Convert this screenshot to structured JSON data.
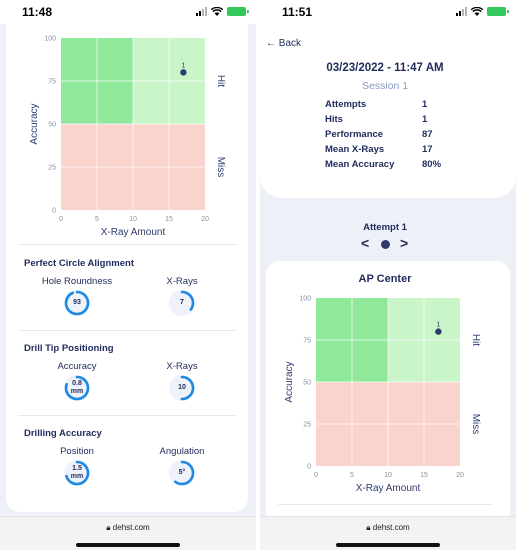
{
  "left_screen": {
    "status_time": "11:48",
    "url": "dehst.com",
    "chart": {
      "x_label": "X-Ray Amount",
      "y_label": "Accuracy",
      "hit_label": "Hit",
      "miss_label": "Miss"
    },
    "sections": [
      {
        "title": "Perfect Circle Alignment",
        "metrics": [
          {
            "label": "Hole Roundness",
            "value": "93",
            "unit": "",
            "fraction": 0.93
          },
          {
            "label": "X-Rays",
            "value": "7",
            "unit": "",
            "fraction": 0.35
          }
        ]
      },
      {
        "title": "Drill Tip Positioning",
        "metrics": [
          {
            "label": "Accuracy",
            "value": "0.8",
            "unit": "mm",
            "fraction": 0.8
          },
          {
            "label": "X-Rays",
            "value": "10",
            "unit": "",
            "fraction": 0.5
          }
        ]
      },
      {
        "title": "Drilling Accuracy",
        "metrics": [
          {
            "label": "Position",
            "value": "1.5",
            "unit": "mm",
            "fraction": 0.7
          },
          {
            "label": "Angulation",
            "value": "5°",
            "unit": "",
            "fraction": 0.6
          }
        ]
      }
    ]
  },
  "right_screen": {
    "status_time": "11:51",
    "back_label": "← Back",
    "session_date": "03/23/2022 - 11:47 AM",
    "session_name": "Session 1",
    "stats": [
      {
        "label": "Attempts",
        "value": "1"
      },
      {
        "label": "Hits",
        "value": "1"
      },
      {
        "label": "Performance",
        "value": "87"
      },
      {
        "label": "Mean X-Rays",
        "value": "17"
      },
      {
        "label": "Mean Accuracy",
        "value": "80%"
      }
    ],
    "attempt_label": "Attempt 1",
    "prev_label": "<",
    "next_label": ">",
    "chart_title": "AP Center",
    "url": "dehst.com",
    "chart": {
      "x_label": "X-Ray Amount",
      "y_label": "Accuracy",
      "hit_label": "Hit",
      "miss_label": "Miss"
    }
  },
  "chart_data": [
    {
      "type": "scatter",
      "xlabel": "X-Ray Amount",
      "ylabel": "Accuracy",
      "xlim": [
        0,
        20
      ],
      "ylim": [
        0,
        100
      ],
      "x_ticks": [
        0,
        5,
        10,
        15,
        20
      ],
      "y_ticks": [
        0,
        25,
        50,
        75,
        100
      ],
      "regions": [
        {
          "name": "Hit",
          "x": [
            0,
            10
          ],
          "y": [
            50,
            100
          ],
          "color": "#90e89a"
        },
        {
          "name": "Hit",
          "x": [
            10,
            20
          ],
          "y": [
            50,
            100
          ],
          "color": "#c9f5c9"
        },
        {
          "name": "Miss",
          "x": [
            0,
            20
          ],
          "y": [
            0,
            50
          ],
          "color": "#fad3cc"
        }
      ],
      "points": [
        {
          "x": 17,
          "y": 80,
          "label": "1"
        }
      ]
    },
    {
      "type": "scatter",
      "title": "AP Center",
      "xlabel": "X-Ray Amount",
      "ylabel": "Accuracy",
      "xlim": [
        0,
        20
      ],
      "ylim": [
        0,
        100
      ],
      "x_ticks": [
        0,
        5,
        10,
        15,
        20
      ],
      "y_ticks": [
        0,
        25,
        50,
        75,
        100
      ],
      "regions": [
        {
          "name": "Hit",
          "x": [
            0,
            10
          ],
          "y": [
            50,
            100
          ],
          "color": "#90e89a"
        },
        {
          "name": "Hit",
          "x": [
            10,
            20
          ],
          "y": [
            50,
            100
          ],
          "color": "#c9f5c9"
        },
        {
          "name": "Miss",
          "x": [
            0,
            20
          ],
          "y": [
            0,
            50
          ],
          "color": "#fad3cc"
        }
      ],
      "points": [
        {
          "x": 17,
          "y": 80,
          "label": "1"
        }
      ]
    }
  ],
  "colors": {
    "accent": "#1e88e5",
    "text": "#1f2b5b",
    "point": "#2e3a6e"
  },
  "icons": [
    "signal-icon",
    "wifi-icon",
    "battery-icon",
    "lock-icon",
    "back-arrow-icon",
    "chevron-left-icon",
    "chevron-right-icon"
  ]
}
